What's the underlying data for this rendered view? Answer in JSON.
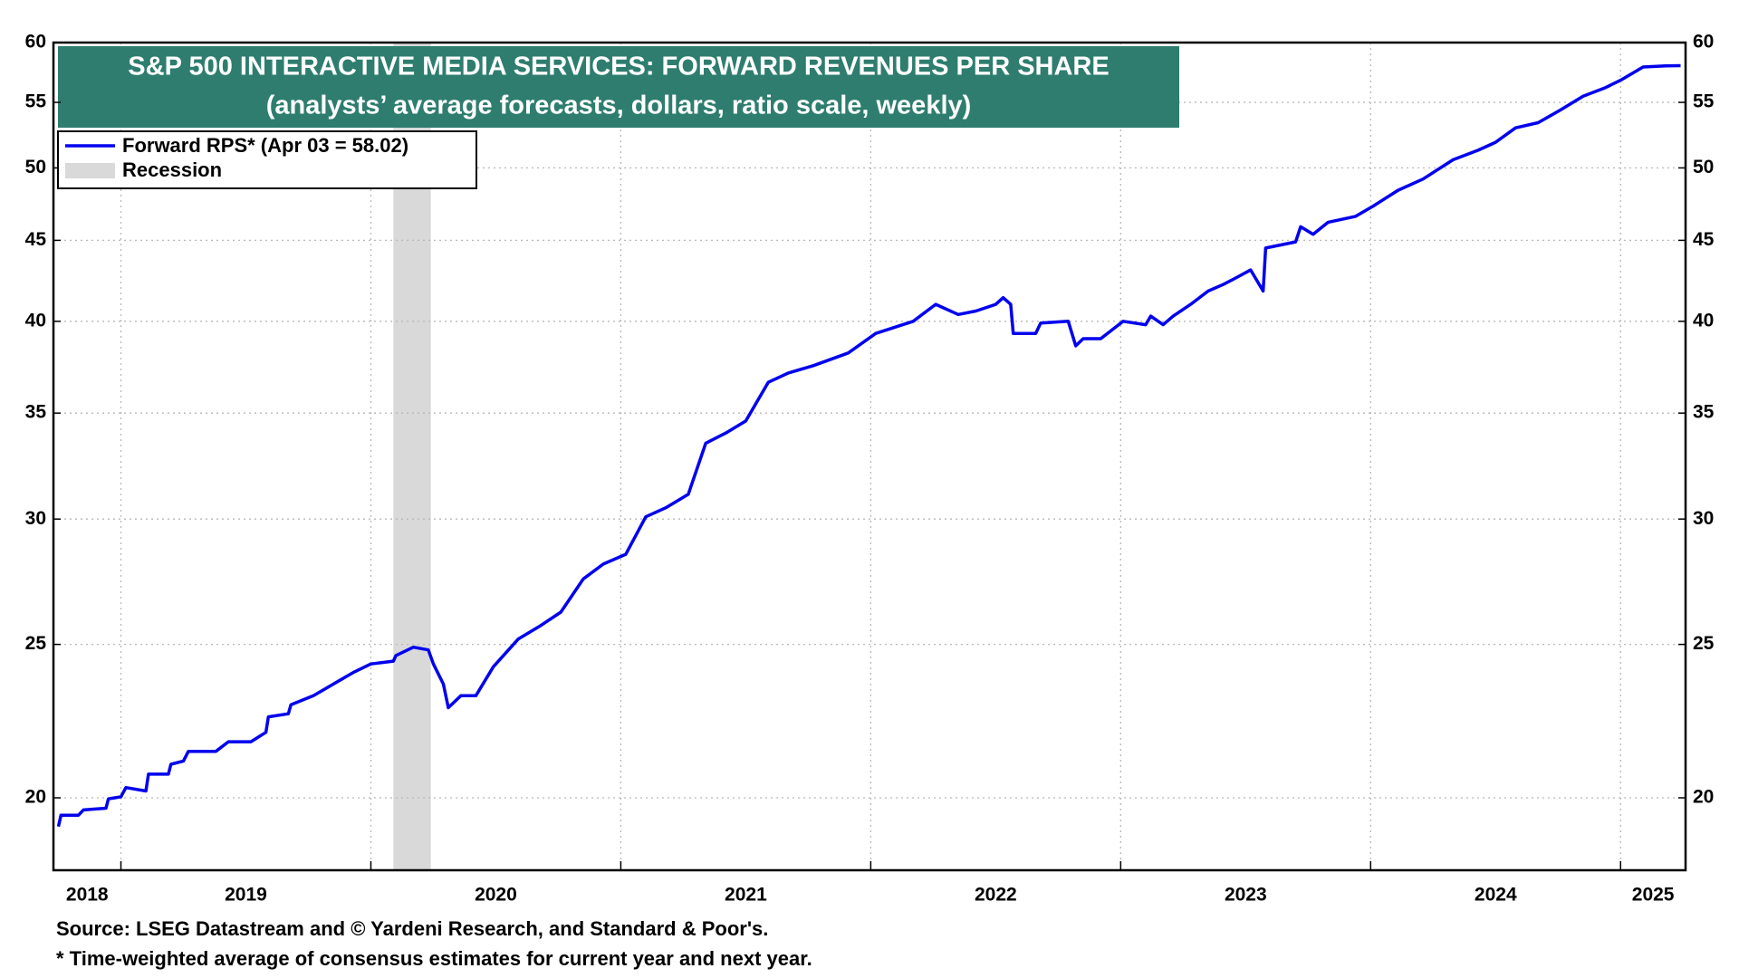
{
  "chart_data": {
    "type": "line",
    "title": "S&P 500 INTERACTIVE MEDIA SERVICES: FORWARD REVENUES PER SHARE",
    "subtitle": "(analysts’ average forecasts, dollars, ratio scale, weekly)",
    "log_scale": true,
    "grid": true,
    "ylim": [
      18,
      60
    ],
    "yticks": [
      20,
      25,
      30,
      35,
      40,
      45,
      50,
      55,
      60
    ],
    "xlim": [
      2018.73,
      2025.26
    ],
    "xticks": [
      2019,
      2020,
      2021,
      2022,
      2023,
      2024,
      2025
    ],
    "x_labels": [
      "2018",
      "2019",
      "2020",
      "2021",
      "2022",
      "2023",
      "2024",
      "2025"
    ],
    "x": [
      2018.75,
      2018.76,
      2018.83,
      2018.85,
      2018.94,
      2018.95,
      2019.0,
      2019.02,
      2019.1,
      2019.11,
      2019.19,
      2019.2,
      2019.25,
      2019.27,
      2019.38,
      2019.43,
      2019.52,
      2019.58,
      2019.59,
      2019.67,
      2019.68,
      2019.77,
      2019.85,
      2019.93,
      2020.0,
      2020.09,
      2020.1,
      2020.17,
      2020.23,
      2020.25,
      2020.29,
      2020.31,
      2020.36,
      2020.42,
      2020.49,
      2020.59,
      2020.68,
      2020.76,
      2020.85,
      2020.93,
      2021.02,
      2021.1,
      2021.18,
      2021.27,
      2021.34,
      2021.42,
      2021.5,
      2021.59,
      2021.67,
      2021.77,
      2021.91,
      2022.02,
      2022.17,
      2022.26,
      2022.35,
      2022.42,
      2022.5,
      2022.53,
      2022.56,
      2022.57,
      2022.66,
      2022.68,
      2022.79,
      2022.82,
      2022.85,
      2022.92,
      2023.01,
      2023.1,
      2023.12,
      2023.17,
      2023.21,
      2023.28,
      2023.35,
      2023.41,
      2023.46,
      2023.52,
      2023.57,
      2023.58,
      2023.7,
      2023.72,
      2023.77,
      2023.83,
      2023.94,
      2024.01,
      2024.11,
      2024.21,
      2024.33,
      2024.43,
      2024.5,
      2024.58,
      2024.67,
      2024.76,
      2024.85,
      2024.94,
      2025.0,
      2025.09,
      2025.18,
      2025.24
    ],
    "series": [
      {
        "name": "Forward RPS* (Apr 03 = 58.02)",
        "color": "#0000ee",
        "values": [
          19.18,
          19.5,
          19.5,
          19.65,
          19.7,
          19.97,
          20.03,
          20.3,
          20.2,
          20.7,
          20.7,
          21.0,
          21.1,
          21.4,
          21.4,
          21.7,
          21.7,
          22.0,
          22.5,
          22.6,
          22.9,
          23.2,
          23.6,
          24.0,
          24.3,
          24.4,
          24.6,
          24.9,
          24.8,
          24.3,
          23.6,
          22.8,
          23.2,
          23.2,
          24.2,
          25.2,
          25.7,
          26.2,
          27.5,
          28.1,
          28.5,
          30.1,
          30.5,
          31.1,
          33.5,
          34.0,
          34.6,
          36.6,
          37.1,
          37.5,
          38.2,
          39.3,
          40.0,
          41.0,
          40.4,
          40.6,
          41.0,
          41.4,
          41.0,
          39.3,
          39.3,
          39.9,
          40.0,
          38.6,
          39.0,
          39.0,
          40.0,
          39.8,
          40.3,
          39.8,
          40.3,
          41.0,
          41.8,
          42.2,
          42.6,
          43.1,
          41.8,
          44.5,
          44.9,
          45.9,
          45.4,
          46.2,
          46.6,
          47.3,
          48.4,
          49.2,
          50.6,
          51.3,
          51.9,
          53.0,
          53.4,
          54.4,
          55.5,
          56.2,
          56.8,
          57.9,
          58.0,
          58.02
        ]
      }
    ],
    "shaded_regions": [
      {
        "name": "Recession",
        "start": 2020.09,
        "end": 2020.24,
        "color": "#d9d9d9"
      }
    ],
    "title_color": "#2e7d6f",
    "footnotes": [
      "Source: LSEG Datastream and © Yardeni Research, and Standard & Poor's.",
      "* Time-weighted average of consensus estimates for current year and next year."
    ]
  }
}
